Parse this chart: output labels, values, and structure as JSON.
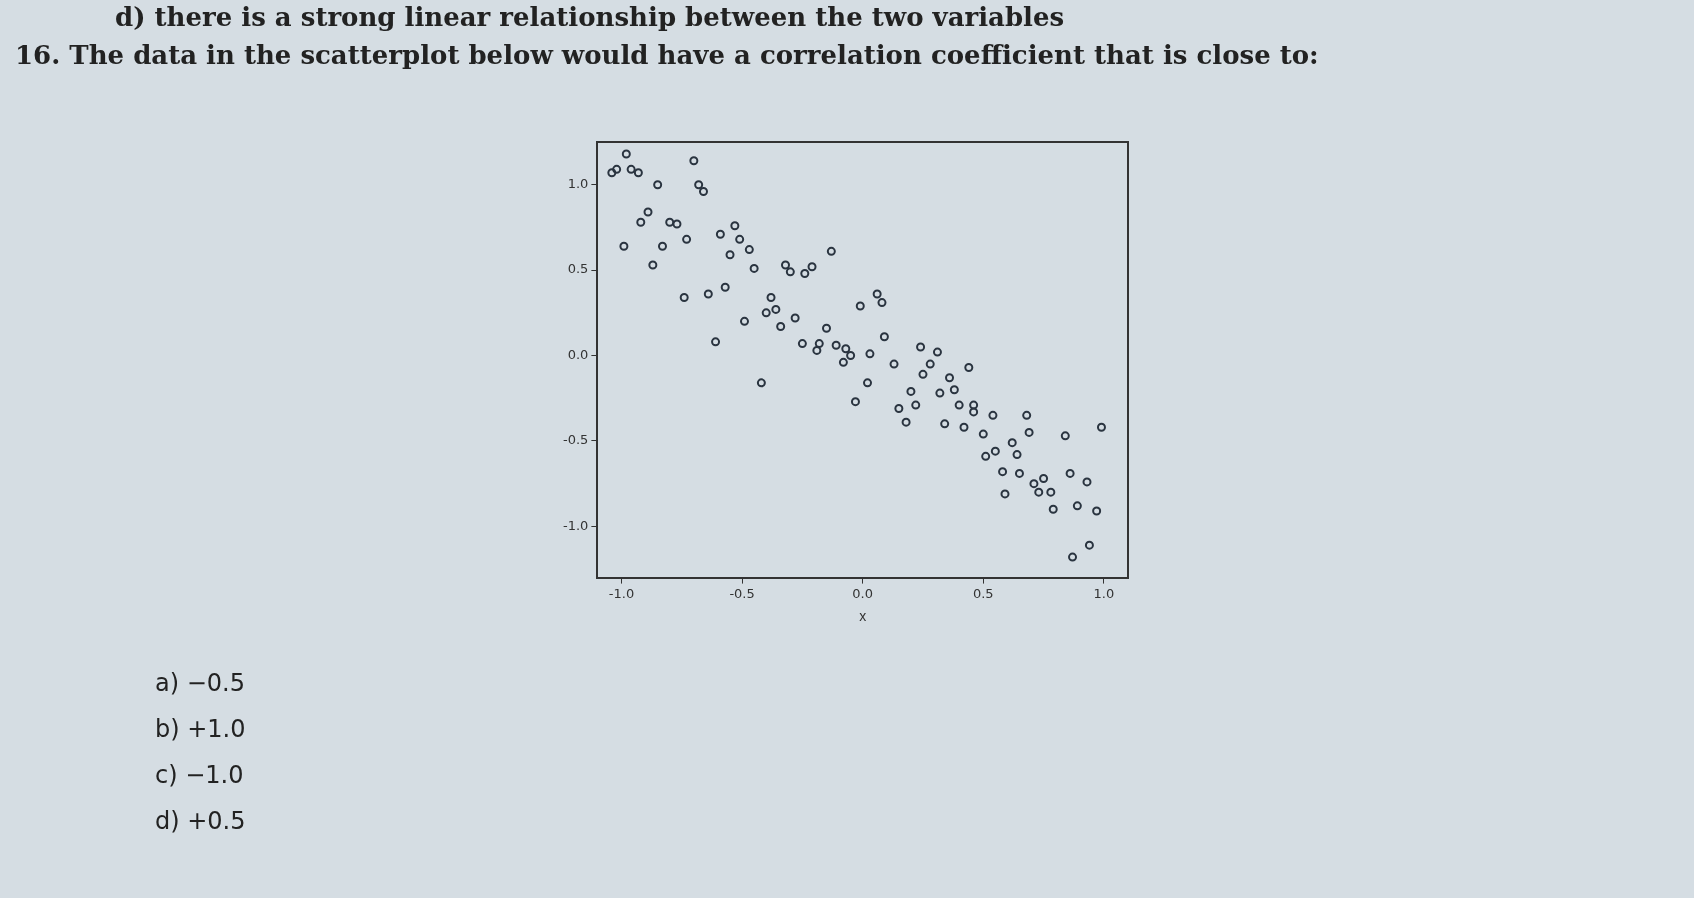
{
  "chart_data": {
    "type": "scatter",
    "title": "16. The data in the scatterplot below would have a correlation coefficient that is close to:",
    "xlabel": "x",
    "annotations": [
      "d) there is a strong linear relationship between the two variables",
      "a) −0.5",
      "b) +1.0",
      "c) −1.0",
      "d) +0.5"
    ],
    "x": [
      -0.98,
      -0.7,
      -1.04,
      -1.02,
      -0.96,
      -0.93,
      -0.85,
      -0.68,
      -0.66,
      -0.89,
      -0.92,
      -0.8,
      -0.77,
      -0.73,
      -0.83,
      -0.99,
      -0.87,
      -0.59,
      -0.53,
      -0.51,
      -0.55,
      -0.47,
      -0.45,
      -0.13,
      -0.32,
      -0.3,
      -0.24,
      -0.21,
      -0.74,
      -0.64,
      -0.57,
      -0.38,
      -0.4,
      -0.36,
      -0.49,
      -0.28,
      -0.34,
      -0.15,
      -0.61,
      -0.25,
      -0.18,
      -0.19,
      -0.11,
      -0.07,
      -0.05,
      -0.08,
      -0.01,
      0.06,
      0.08,
      0.09,
      0.03,
      0.13,
      -0.42,
      0.02,
      -0.03,
      0.24,
      0.31,
      0.28,
      0.25,
      0.36,
      0.38,
      0.32,
      0.44,
      0.2,
      0.22,
      0.15,
      0.18,
      0.4,
      0.46,
      0.46,
      0.54,
      0.34,
      0.42,
      0.5,
      0.68,
      0.69,
      0.84,
      0.99,
      0.55,
      0.51,
      0.62,
      0.64,
      0.58,
      0.65,
      0.59,
      0.71,
      0.75,
      0.73,
      0.78,
      0.79,
      0.86,
      0.93,
      0.89,
      0.97,
      0.94,
      0.87
    ],
    "values": [
      1.18,
      1.14,
      1.07,
      1.09,
      1.09,
      1.07,
      1.0,
      1.0,
      0.96,
      0.84,
      0.78,
      0.78,
      0.77,
      0.68,
      0.64,
      0.64,
      0.53,
      0.71,
      0.76,
      0.68,
      0.59,
      0.62,
      0.51,
      0.61,
      0.53,
      0.49,
      0.48,
      0.52,
      0.34,
      0.36,
      0.4,
      0.34,
      0.25,
      0.27,
      0.2,
      0.22,
      0.17,
      0.16,
      0.08,
      0.07,
      0.07,
      0.03,
      0.06,
      0.04,
      0.0,
      -0.04,
      0.29,
      0.36,
      0.31,
      0.11,
      0.01,
      -0.05,
      -0.16,
      -0.16,
      -0.27,
      0.05,
      0.02,
      -0.05,
      -0.11,
      -0.13,
      -0.2,
      -0.22,
      -0.07,
      -0.21,
      -0.29,
      -0.31,
      -0.39,
      -0.29,
      -0.29,
      -0.33,
      -0.35,
      -0.4,
      -0.42,
      -0.46,
      -0.35,
      -0.45,
      -0.47,
      -0.42,
      -0.56,
      -0.59,
      -0.51,
      -0.58,
      -0.68,
      -0.69,
      -0.81,
      -0.75,
      -0.72,
      -0.8,
      -0.8,
      -0.9,
      -0.69,
      -0.74,
      -0.88,
      -0.91,
      -1.11,
      -1.18
    ],
    "color": "#2a3440",
    "marker": "circle",
    "xlim": [
      -1.1,
      1.1
    ],
    "ylim": [
      -1.3,
      1.25
    ],
    "xticks": [
      {
        "value": -1,
        "label": "-1.0"
      },
      {
        "value": -0.5,
        "label": "-0.5"
      },
      {
        "value": 0,
        "label": "0.0"
      },
      {
        "value": 0.5,
        "label": "0.5"
      },
      {
        "value": 1,
        "label": "1.0"
      }
    ],
    "yticks": [
      {
        "value": -1,
        "label": "-1.0"
      },
      {
        "value": -0.5,
        "label": "-0.5"
      },
      {
        "value": 0,
        "label": "0.0"
      },
      {
        "value": 0.5,
        "label": "0.5"
      },
      {
        "value": 1,
        "label": "1.0"
      }
    ],
    "grid": false,
    "legend": false
  }
}
